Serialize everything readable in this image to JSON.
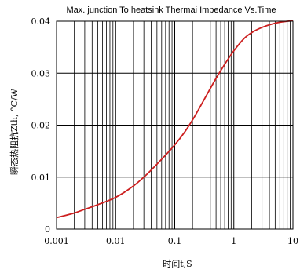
{
  "chart_data": {
    "type": "line",
    "title": "Max. junction To heatsink Thermai Impedance Vs.Time",
    "xlabel": "时间t,S",
    "ylabel": "瞬态热阻抗Zth, °C/W",
    "x_scale": "log",
    "xlim": [
      0.001,
      10
    ],
    "ylim": [
      0,
      0.04
    ],
    "x_ticks": [
      0.001,
      0.01,
      0.1,
      1,
      10
    ],
    "x_tick_labels": [
      "0.001",
      "0.01",
      "0.1",
      "1",
      "10"
    ],
    "y_ticks": [
      0,
      0.01,
      0.02,
      0.03,
      0.04
    ],
    "y_tick_labels": [
      "0",
      "0.01",
      "0.02",
      "0.03",
      "0.04"
    ],
    "grid": true,
    "series": [
      {
        "color": "#cc1f1f",
        "x": [
          0.001,
          0.002,
          0.003,
          0.005,
          0.01,
          0.02,
          0.03,
          0.05,
          0.1,
          0.15,
          0.2,
          0.3,
          0.5,
          0.7,
          1,
          1.5,
          2,
          3,
          5,
          7,
          10
        ],
        "y": [
          0.0022,
          0.0031,
          0.0038,
          0.0047,
          0.0061,
          0.0083,
          0.01,
          0.0125,
          0.0162,
          0.0188,
          0.021,
          0.0245,
          0.029,
          0.0317,
          0.0343,
          0.0367,
          0.0378,
          0.0388,
          0.0396,
          0.0399,
          0.0401
        ]
      }
    ]
  }
}
